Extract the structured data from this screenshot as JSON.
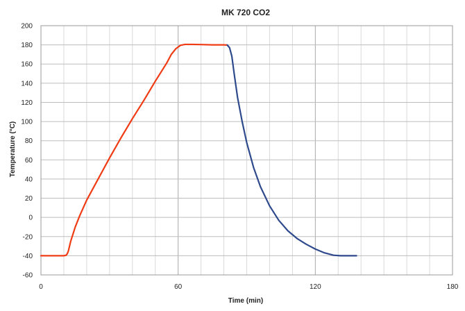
{
  "chart_data": {
    "type": "line",
    "title": "MK 720 CO2",
    "xlabel": "Time (min)",
    "ylabel": "Temperature (°C)",
    "xlim": [
      0,
      180
    ],
    "ylim": [
      -60,
      200
    ],
    "x_ticks": [
      0,
      60,
      120,
      180
    ],
    "y_ticks": [
      -60,
      -40,
      -20,
      0,
      20,
      40,
      60,
      80,
      100,
      120,
      140,
      160,
      180,
      200
    ],
    "x_minor_step": 10,
    "grid": true,
    "legend": "none",
    "series": [
      {
        "color": "#f03c14",
        "x": [
          0,
          10,
          11,
          11.5,
          12,
          13,
          15,
          17,
          20,
          25,
          30,
          35,
          40,
          45,
          50,
          55,
          57,
          59,
          61,
          63,
          66,
          70,
          75,
          80,
          81.5
        ],
        "y": [
          -40,
          -40,
          -39.5,
          -38,
          -35,
          -25,
          -10,
          2,
          18,
          40,
          62,
          83,
          103,
          122,
          142,
          161,
          170,
          176,
          179.5,
          180.5,
          180.5,
          180.3,
          180,
          180,
          179.8
        ]
      },
      {
        "color": "#2e4a8c",
        "x": [
          81.5,
          82.5,
          83.5,
          84.5,
          86,
          88,
          90,
          93,
          96,
          100,
          104,
          108,
          112,
          116,
          120,
          124,
          128,
          131,
          134,
          138
        ],
        "y": [
          179.8,
          177,
          168,
          150,
          125,
          100,
          78,
          52,
          32,
          12,
          -3,
          -14,
          -22,
          -28,
          -33,
          -37,
          -39.5,
          -40,
          -40,
          -40
        ]
      }
    ]
  }
}
